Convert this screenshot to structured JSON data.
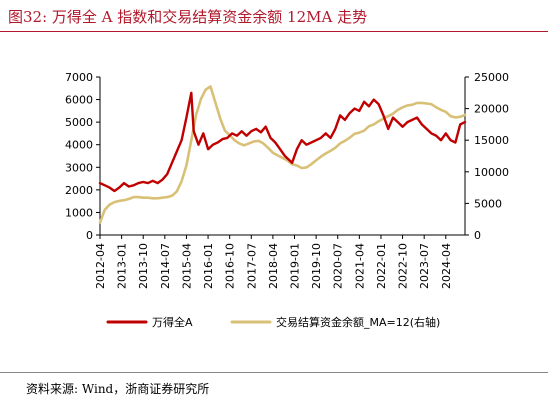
{
  "figure_title": "图32:    万得全 A 指数和交易结算资金余额 12MA 走势",
  "source_note": "资料来源:  Wind，浙商证券研究所",
  "colors": {
    "title": "#b2182b",
    "series_index": "#c00000",
    "series_balance": "#d9c077"
  },
  "chart_data": {
    "type": "line",
    "left_axis": {
      "ylim": [
        0,
        7000
      ],
      "ticks": [
        "0",
        "1000",
        "2000",
        "3000",
        "4000",
        "5000",
        "6000",
        "7000"
      ]
    },
    "right_axis": {
      "ylim": [
        0,
        25000
      ],
      "ticks": [
        "0",
        "5000",
        "10000",
        "15000",
        "20000",
        "25000"
      ]
    },
    "x_tick_labels": [
      "2012-04",
      "2013-01",
      "2013-10",
      "2014-07",
      "2015-04",
      "2016-01",
      "2016-10",
      "2017-07",
      "2018-04",
      "2019-01",
      "2019-10",
      "2020-07",
      "2021-04",
      "2022-01",
      "2022-10",
      "2023-07",
      "2024-04"
    ],
    "legend": [
      "万得全A",
      "交易结算资金余额_MA=12(右轴)"
    ],
    "series": [
      {
        "name": "万得全A",
        "axis": "left",
        "x": [
          "2012-04",
          "2012-06",
          "2012-08",
          "2012-10",
          "2012-12",
          "2013-02",
          "2013-04",
          "2013-06",
          "2013-08",
          "2013-10",
          "2013-12",
          "2014-02",
          "2014-04",
          "2014-06",
          "2014-08",
          "2014-10",
          "2014-12",
          "2015-02",
          "2015-04",
          "2015-06",
          "2015-07",
          "2015-09",
          "2015-11",
          "2016-01",
          "2016-03",
          "2016-05",
          "2016-07",
          "2016-09",
          "2016-11",
          "2017-01",
          "2017-03",
          "2017-05",
          "2017-07",
          "2017-09",
          "2017-11",
          "2018-01",
          "2018-03",
          "2018-05",
          "2018-07",
          "2018-09",
          "2018-11",
          "2018-12",
          "2019-02",
          "2019-04",
          "2019-06",
          "2019-08",
          "2019-10",
          "2019-12",
          "2020-02",
          "2020-04",
          "2020-06",
          "2020-08",
          "2020-10",
          "2020-12",
          "2021-02",
          "2021-04",
          "2021-06",
          "2021-08",
          "2021-10",
          "2021-12",
          "2022-02",
          "2022-04",
          "2022-06",
          "2022-08",
          "2022-10",
          "2022-12",
          "2023-02",
          "2023-04",
          "2023-06",
          "2023-08",
          "2023-10",
          "2023-12",
          "2024-02",
          "2024-04",
          "2024-06",
          "2024-08",
          "2024-10",
          "2024-12"
        ],
        "values": [
          2300,
          2200,
          2100,
          1950,
          2100,
          2300,
          2150,
          2200,
          2300,
          2350,
          2300,
          2400,
          2300,
          2450,
          2700,
          3200,
          3700,
          4200,
          5200,
          6300,
          4600,
          4000,
          4500,
          3800,
          4000,
          4100,
          4250,
          4300,
          4500,
          4400,
          4600,
          4400,
          4600,
          4700,
          4550,
          4800,
          4300,
          4100,
          3800,
          3500,
          3300,
          3200,
          3800,
          4200,
          4000,
          4100,
          4200,
          4300,
          4500,
          4300,
          4700,
          5300,
          5100,
          5400,
          5600,
          5500,
          5900,
          5700,
          6000,
          5800,
          5300,
          4700,
          5200,
          5000,
          4800,
          5000,
          5100,
          5200,
          4900,
          4700,
          4500,
          4400,
          4200,
          4500,
          4200,
          4100,
          4900,
          5000
        ]
      },
      {
        "name": "交易结算资金余额_MA=12(右轴)",
        "axis": "right",
        "x": [
          "2012-04",
          "2012-06",
          "2012-08",
          "2012-10",
          "2012-12",
          "2013-02",
          "2013-04",
          "2013-06",
          "2013-08",
          "2013-10",
          "2013-12",
          "2014-02",
          "2014-04",
          "2014-06",
          "2014-08",
          "2014-10",
          "2014-12",
          "2015-02",
          "2015-04",
          "2015-06",
          "2015-08",
          "2015-10",
          "2015-12",
          "2016-02",
          "2016-04",
          "2016-06",
          "2016-08",
          "2016-10",
          "2016-12",
          "2017-02",
          "2017-04",
          "2017-06",
          "2017-08",
          "2017-10",
          "2017-12",
          "2018-02",
          "2018-04",
          "2018-06",
          "2018-08",
          "2018-10",
          "2018-12",
          "2019-02",
          "2019-04",
          "2019-06",
          "2019-08",
          "2019-10",
          "2019-12",
          "2020-02",
          "2020-04",
          "2020-06",
          "2020-08",
          "2020-10",
          "2020-12",
          "2021-02",
          "2021-04",
          "2021-06",
          "2021-08",
          "2021-10",
          "2021-12",
          "2022-02",
          "2022-04",
          "2022-06",
          "2022-08",
          "2022-10",
          "2022-12",
          "2023-02",
          "2023-04",
          "2023-06",
          "2023-08",
          "2023-10",
          "2023-12",
          "2024-02",
          "2024-04",
          "2024-06",
          "2024-08",
          "2024-10",
          "2024-12"
        ],
        "values": [
          2000,
          4000,
          4800,
          5200,
          5400,
          5500,
          5700,
          6000,
          6000,
          5900,
          5900,
          5800,
          5800,
          5900,
          6000,
          6200,
          6900,
          8500,
          11000,
          15000,
          19000,
          21500,
          23000,
          23500,
          21000,
          18500,
          16500,
          15800,
          15000,
          14500,
          14200,
          14500,
          14800,
          14900,
          14500,
          13800,
          13000,
          12600,
          12200,
          11800,
          11200,
          11000,
          10600,
          10700,
          11200,
          11800,
          12400,
          12900,
          13300,
          13800,
          14500,
          14900,
          15400,
          16000,
          16200,
          16500,
          17200,
          17500,
          18000,
          18400,
          18800,
          19200,
          19800,
          20200,
          20500,
          20600,
          20900,
          20900,
          20800,
          20700,
          20200,
          19800,
          19500,
          18800,
          18600,
          18700,
          19000
        ]
      }
    ]
  }
}
